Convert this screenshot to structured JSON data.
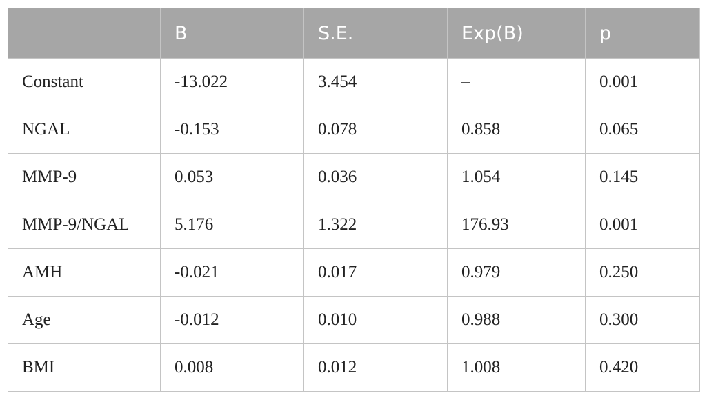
{
  "table": {
    "header": [
      "",
      "B",
      "S.E.",
      "Exp(B)",
      "p"
    ],
    "rows": [
      [
        "Constant",
        "-13.022",
        "3.454",
        "–",
        "0.001"
      ],
      [
        "NGAL",
        "-0.153",
        "0.078",
        "0.858",
        "0.065"
      ],
      [
        "MMP-9",
        "0.053",
        "0.036",
        "1.054",
        "0.145"
      ],
      [
        "MMP-9/NGAL",
        "5.176",
        "1.322",
        "176.93",
        "0.001"
      ],
      [
        "AMH",
        "-0.021",
        "0.017",
        "0.979",
        "0.250"
      ],
      [
        "Age",
        "-0.012",
        "0.010",
        "0.988",
        "0.300"
      ],
      [
        "BMI",
        "0.008",
        "0.012",
        "1.008",
        "0.420"
      ]
    ]
  }
}
